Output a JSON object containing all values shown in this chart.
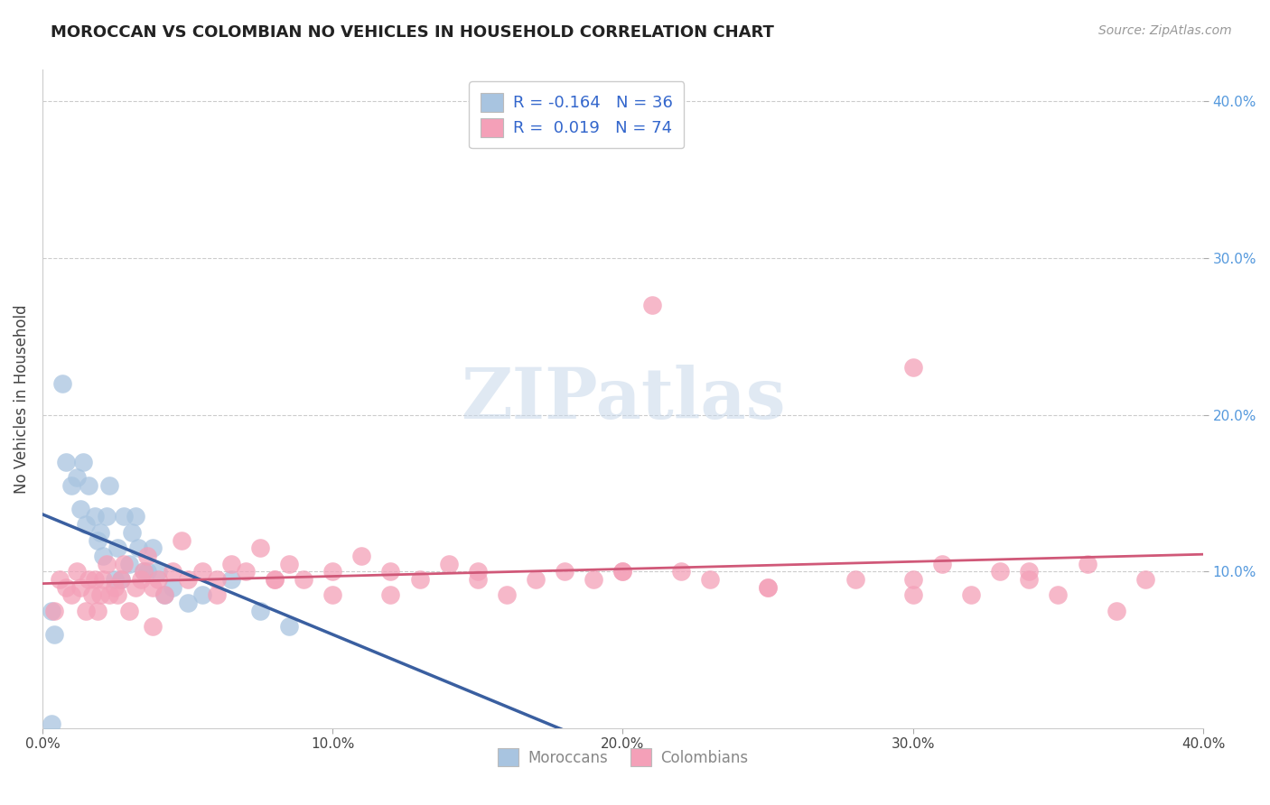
{
  "title": "MOROCCAN VS COLOMBIAN NO VEHICLES IN HOUSEHOLD CORRELATION CHART",
  "source": "Source: ZipAtlas.com",
  "ylabel": "No Vehicles in Household",
  "watermark": "ZIPatlas",
  "xlim": [
    0.0,
    0.4
  ],
  "ylim": [
    0.0,
    0.42
  ],
  "xticks": [
    0.0,
    0.1,
    0.2,
    0.3,
    0.4
  ],
  "yticks": [
    0.1,
    0.2,
    0.3,
    0.4
  ],
  "xticklabels": [
    "0.0%",
    "10.0%",
    "20.0%",
    "30.0%",
    "40.0%"
  ],
  "yticklabels": [
    "10.0%",
    "20.0%",
    "30.0%",
    "40.0%"
  ],
  "moroccan_color": "#a8c4e0",
  "colombian_color": "#f4a0b8",
  "moroccan_line_color": "#3a5fa0",
  "colombian_line_color": "#d05878",
  "trend_dash_color": "#aabbcc",
  "background_color": "#ffffff",
  "grid_color": "#cccccc",
  "moroccan_x": [
    0.003,
    0.007,
    0.008,
    0.01,
    0.012,
    0.013,
    0.014,
    0.015,
    0.016,
    0.018,
    0.019,
    0.02,
    0.021,
    0.022,
    0.023,
    0.025,
    0.026,
    0.027,
    0.028,
    0.03,
    0.031,
    0.032,
    0.033,
    0.035,
    0.036,
    0.038,
    0.04,
    0.042,
    0.045,
    0.05,
    0.055,
    0.065,
    0.075,
    0.085,
    0.003,
    0.004
  ],
  "moroccan_y": [
    0.003,
    0.22,
    0.17,
    0.155,
    0.16,
    0.14,
    0.17,
    0.13,
    0.155,
    0.135,
    0.12,
    0.125,
    0.11,
    0.135,
    0.155,
    0.095,
    0.115,
    0.095,
    0.135,
    0.105,
    0.125,
    0.135,
    0.115,
    0.1,
    0.1,
    0.115,
    0.1,
    0.085,
    0.09,
    0.08,
    0.085,
    0.095,
    0.075,
    0.065,
    0.075,
    0.06
  ],
  "colombian_x": [
    0.004,
    0.006,
    0.008,
    0.01,
    0.012,
    0.013,
    0.015,
    0.016,
    0.017,
    0.018,
    0.019,
    0.02,
    0.021,
    0.022,
    0.023,
    0.025,
    0.026,
    0.027,
    0.028,
    0.03,
    0.032,
    0.034,
    0.035,
    0.036,
    0.038,
    0.04,
    0.042,
    0.045,
    0.048,
    0.05,
    0.055,
    0.06,
    0.065,
    0.07,
    0.075,
    0.08,
    0.085,
    0.09,
    0.1,
    0.11,
    0.12,
    0.13,
    0.14,
    0.15,
    0.16,
    0.17,
    0.18,
    0.19,
    0.2,
    0.21,
    0.22,
    0.23,
    0.25,
    0.28,
    0.3,
    0.31,
    0.32,
    0.33,
    0.34,
    0.35,
    0.36,
    0.37,
    0.38,
    0.34,
    0.3,
    0.25,
    0.2,
    0.15,
    0.12,
    0.1,
    0.08,
    0.06,
    0.038,
    0.3
  ],
  "colombian_y": [
    0.075,
    0.095,
    0.09,
    0.085,
    0.1,
    0.09,
    0.075,
    0.095,
    0.085,
    0.095,
    0.075,
    0.085,
    0.095,
    0.105,
    0.085,
    0.09,
    0.085,
    0.095,
    0.105,
    0.075,
    0.09,
    0.095,
    0.1,
    0.11,
    0.09,
    0.095,
    0.085,
    0.1,
    0.12,
    0.095,
    0.1,
    0.095,
    0.105,
    0.1,
    0.115,
    0.095,
    0.105,
    0.095,
    0.1,
    0.11,
    0.1,
    0.095,
    0.105,
    0.1,
    0.085,
    0.095,
    0.1,
    0.095,
    0.1,
    0.27,
    0.1,
    0.095,
    0.09,
    0.095,
    0.085,
    0.105,
    0.085,
    0.1,
    0.095,
    0.085,
    0.105,
    0.075,
    0.095,
    0.1,
    0.095,
    0.09,
    0.1,
    0.095,
    0.085,
    0.085,
    0.095,
    0.085,
    0.065,
    0.23
  ]
}
